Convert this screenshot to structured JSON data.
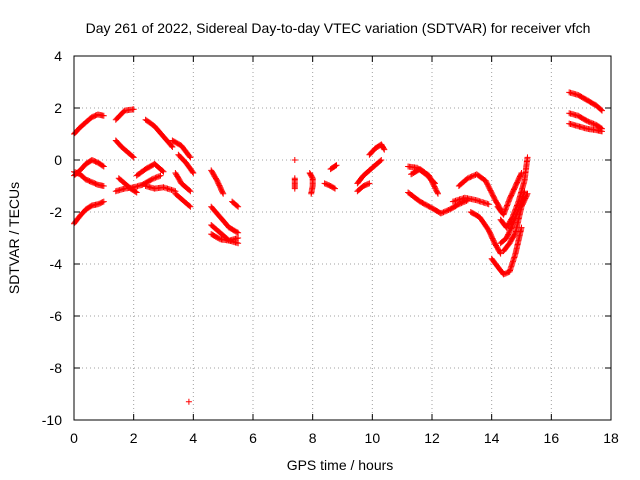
{
  "chart_data": {
    "type": "scatter",
    "title": "Day 261 of 2022, Sidereal Day-to-day VTEC variation (SDTVAR) for receiver vfch",
    "xlabel": "GPS time / hours",
    "ylabel": "SDTVAR / TECUs",
    "xlim": [
      0,
      18
    ],
    "ylim": [
      -10,
      4
    ],
    "xticks": [
      "0",
      "2",
      "4",
      "6",
      "8",
      "10",
      "12",
      "14",
      "16",
      "18"
    ],
    "yticks": [
      "-10",
      "-8",
      "-6",
      "-4",
      "-2",
      "0",
      "2",
      "4"
    ],
    "grid": true,
    "marker": "+",
    "color": "#ff0000",
    "segments": [
      [
        [
          0.0,
          1.0
        ],
        [
          0.2,
          1.25
        ],
        [
          0.4,
          1.45
        ],
        [
          0.6,
          1.65
        ],
        [
          0.8,
          1.75
        ],
        [
          1.0,
          1.7
        ]
      ],
      [
        [
          0.0,
          -0.6
        ],
        [
          0.2,
          -0.4
        ],
        [
          0.4,
          -0.15
        ],
        [
          0.6,
          0.0
        ],
        [
          0.8,
          -0.1
        ],
        [
          1.0,
          -0.25
        ]
      ],
      [
        [
          0.0,
          -0.45
        ],
        [
          0.2,
          -0.55
        ],
        [
          0.4,
          -0.75
        ],
        [
          0.6,
          -0.85
        ],
        [
          0.8,
          -0.95
        ],
        [
          1.0,
          -1.0
        ]
      ],
      [
        [
          0.0,
          -2.45
        ],
        [
          0.2,
          -2.15
        ],
        [
          0.4,
          -1.9
        ],
        [
          0.6,
          -1.75
        ],
        [
          0.8,
          -1.7
        ],
        [
          1.0,
          -1.6
        ]
      ],
      [
        [
          1.4,
          1.55
        ],
        [
          1.7,
          1.9
        ],
        [
          2.0,
          1.95
        ]
      ],
      [
        [
          1.4,
          0.75
        ],
        [
          1.6,
          0.5
        ],
        [
          1.8,
          0.3
        ],
        [
          2.0,
          0.1
        ]
      ],
      [
        [
          1.5,
          -0.7
        ],
        [
          1.7,
          -0.9
        ],
        [
          1.9,
          -1.1
        ],
        [
          2.1,
          -1.25
        ]
      ],
      [
        [
          1.4,
          -1.2
        ],
        [
          1.7,
          -1.1
        ],
        [
          2.0,
          -1.05
        ],
        [
          2.3,
          -0.95
        ],
        [
          2.6,
          -0.75
        ],
        [
          2.9,
          -0.6
        ]
      ],
      [
        [
          2.1,
          -0.6
        ],
        [
          2.4,
          -0.35
        ],
        [
          2.7,
          -0.15
        ],
        [
          3.0,
          -0.45
        ]
      ],
      [
        [
          2.4,
          1.55
        ],
        [
          2.7,
          1.3
        ],
        [
          3.0,
          0.9
        ],
        [
          3.3,
          0.5
        ]
      ],
      [
        [
          2.4,
          -1.0
        ],
        [
          2.7,
          -1.1
        ],
        [
          3.0,
          -1.05
        ],
        [
          3.4,
          -1.2
        ]
      ],
      [
        [
          3.3,
          0.75
        ],
        [
          3.6,
          0.55
        ],
        [
          3.9,
          0.1
        ]
      ],
      [
        [
          3.4,
          -0.5
        ],
        [
          3.6,
          -0.9
        ],
        [
          3.9,
          -1.2
        ]
      ],
      [
        [
          3.4,
          -1.3
        ],
        [
          3.6,
          -1.5
        ],
        [
          3.9,
          -1.8
        ]
      ],
      [
        [
          3.5,
          0.2
        ],
        [
          3.75,
          -0.1
        ],
        [
          4.0,
          -0.5
        ]
      ],
      [
        [
          3.85,
          -9.3
        ]
      ],
      [
        [
          4.6,
          -0.4
        ],
        [
          4.8,
          -0.8
        ],
        [
          5.0,
          -1.3
        ]
      ],
      [
        [
          4.6,
          -1.8
        ],
        [
          4.9,
          -2.2
        ],
        [
          5.2,
          -2.6
        ],
        [
          5.5,
          -2.8
        ]
      ],
      [
        [
          4.6,
          -2.5
        ],
        [
          4.9,
          -2.8
        ],
        [
          5.2,
          -3.1
        ],
        [
          5.5,
          -3.0
        ]
      ],
      [
        [
          4.6,
          -2.85
        ],
        [
          4.9,
          -3.05
        ],
        [
          5.2,
          -3.1
        ],
        [
          5.5,
          -3.2
        ]
      ],
      [
        [
          5.3,
          -1.6
        ],
        [
          5.5,
          -1.8
        ]
      ],
      [
        [
          7.4,
          0.0
        ]
      ],
      [
        [
          7.4,
          -0.7
        ],
        [
          7.4,
          -0.9
        ],
        [
          7.4,
          -1.1
        ]
      ],
      [
        [
          7.9,
          -0.5
        ],
        [
          8.0,
          -0.7
        ],
        [
          8.0,
          -1.0
        ],
        [
          7.95,
          -1.3
        ]
      ],
      [
        [
          8.4,
          -0.9
        ],
        [
          8.6,
          -1.0
        ],
        [
          8.75,
          -1.1
        ]
      ],
      [
        [
          8.6,
          -0.35
        ],
        [
          8.8,
          -0.2
        ]
      ],
      [
        [
          9.5,
          -0.9
        ],
        [
          9.7,
          -0.6
        ],
        [
          9.9,
          -0.4
        ]
      ],
      [
        [
          9.5,
          -1.2
        ],
        [
          9.7,
          -1.0
        ],
        [
          9.9,
          -0.9
        ]
      ],
      [
        [
          9.9,
          0.2
        ],
        [
          10.1,
          0.45
        ],
        [
          10.3,
          0.6
        ],
        [
          10.4,
          0.4
        ]
      ],
      [
        [
          9.9,
          -0.4
        ],
        [
          10.1,
          -0.2
        ],
        [
          10.3,
          0.0
        ]
      ],
      [
        [
          11.2,
          -0.25
        ],
        [
          11.5,
          -0.3
        ],
        [
          11.8,
          -0.55
        ],
        [
          12.1,
          -0.9
        ]
      ],
      [
        [
          11.2,
          -1.25
        ],
        [
          11.6,
          -1.6
        ],
        [
          12.0,
          -1.85
        ],
        [
          12.3,
          -2.05
        ]
      ],
      [
        [
          11.3,
          -0.55
        ],
        [
          11.6,
          -0.35
        ],
        [
          11.9,
          -0.6
        ],
        [
          12.2,
          -1.3
        ]
      ],
      [
        [
          12.3,
          -2.05
        ],
        [
          12.6,
          -1.9
        ],
        [
          12.9,
          -1.7
        ],
        [
          13.2,
          -1.55
        ]
      ],
      [
        [
          12.7,
          -1.6
        ],
        [
          13.1,
          -1.45
        ],
        [
          13.5,
          -1.55
        ],
        [
          13.9,
          -1.7
        ]
      ],
      [
        [
          12.9,
          -1.0
        ],
        [
          13.2,
          -0.7
        ],
        [
          13.5,
          -0.55
        ],
        [
          13.8,
          -0.8
        ],
        [
          14.1,
          -1.5
        ],
        [
          14.3,
          -1.9
        ]
      ],
      [
        [
          13.3,
          -2.0
        ],
        [
          13.6,
          -2.2
        ],
        [
          13.9,
          -2.7
        ],
        [
          14.1,
          -3.2
        ],
        [
          14.3,
          -3.6
        ]
      ],
      [
        [
          14.0,
          -3.8
        ],
        [
          14.2,
          -4.1
        ],
        [
          14.4,
          -4.4
        ],
        [
          14.6,
          -4.3
        ],
        [
          14.8,
          -3.6
        ],
        [
          15.0,
          -2.6
        ]
      ],
      [
        [
          14.3,
          -2.3
        ],
        [
          14.5,
          -2.6
        ],
        [
          14.7,
          -2.2
        ],
        [
          14.9,
          -1.6
        ],
        [
          15.1,
          -0.8
        ],
        [
          15.2,
          0.1
        ]
      ],
      [
        [
          14.3,
          -3.2
        ],
        [
          14.5,
          -3.0
        ],
        [
          14.7,
          -2.5
        ],
        [
          14.9,
          -1.9
        ],
        [
          15.1,
          -1.2
        ]
      ],
      [
        [
          14.2,
          -1.8
        ],
        [
          14.4,
          -2.1
        ],
        [
          14.6,
          -1.5
        ],
        [
          14.8,
          -1.0
        ],
        [
          15.0,
          -0.5
        ]
      ],
      [
        [
          14.4,
          -3.5
        ],
        [
          14.6,
          -3.2
        ],
        [
          14.8,
          -2.8
        ],
        [
          15.0,
          -1.8
        ],
        [
          15.2,
          -1.3
        ]
      ],
      [
        [
          16.6,
          2.6
        ],
        [
          16.9,
          2.5
        ],
        [
          17.2,
          2.3
        ],
        [
          17.5,
          2.1
        ],
        [
          17.7,
          1.9
        ]
      ],
      [
        [
          16.6,
          1.8
        ],
        [
          16.9,
          1.7
        ],
        [
          17.2,
          1.5
        ],
        [
          17.5,
          1.35
        ],
        [
          17.7,
          1.2
        ]
      ],
      [
        [
          16.6,
          1.4
        ],
        [
          16.9,
          1.3
        ],
        [
          17.2,
          1.2
        ],
        [
          17.5,
          1.15
        ],
        [
          17.7,
          1.1
        ]
      ]
    ]
  }
}
